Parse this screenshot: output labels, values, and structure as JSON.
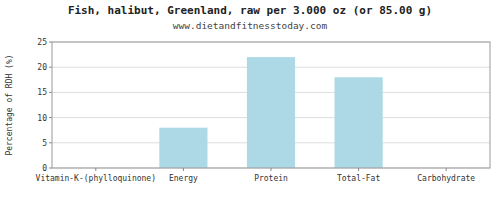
{
  "chart_data": {
    "type": "bar",
    "title": "Fish, halibut, Greenland, raw per 3.000 oz (or 85.00 g)",
    "subtitle": "www.dietandfitnesstoday.com",
    "categories": [
      "Vitamin-K-(phylloquinone)",
      "Energy",
      "Protein",
      "Total-Fat",
      "Carbohydrate"
    ],
    "values": [
      0,
      8,
      22,
      18,
      0
    ],
    "color": "#add8e6",
    "ylabel": "Percentage of RDH (%)",
    "ylim": [
      0,
      25
    ],
    "yticks": [
      0,
      5,
      10,
      15,
      20,
      25
    ],
    "grid": true
  }
}
